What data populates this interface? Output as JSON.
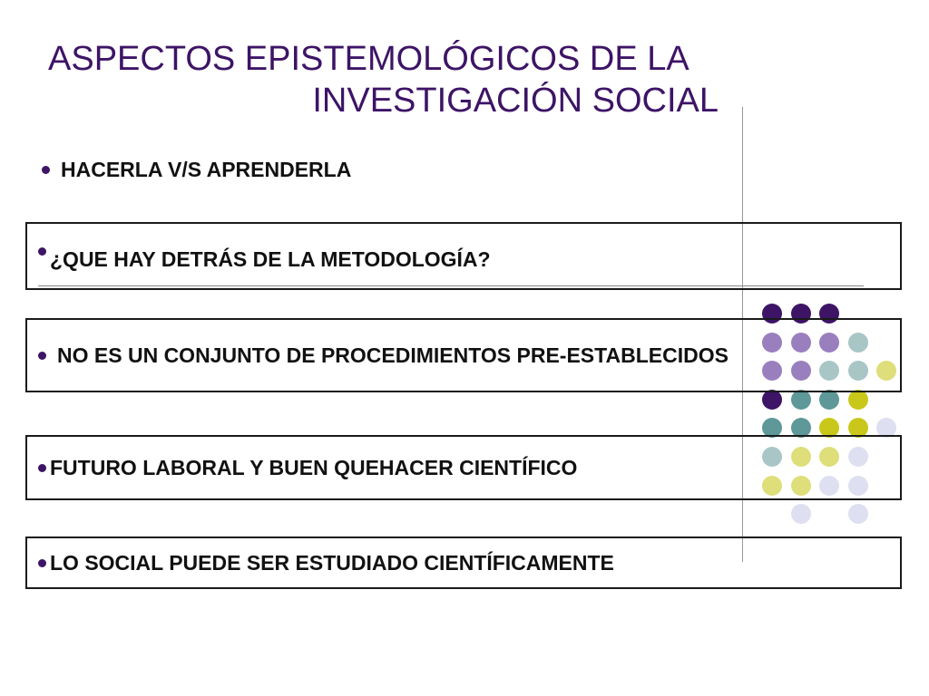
{
  "title": {
    "line1": "ASPECTOS EPISTEMOLÓGICOS DE LA",
    "line2": "INVESTIGACIÓN SOCIAL"
  },
  "intro": "HACERLA V/S APRENDERLA",
  "boxes": [
    "¿QUE HAY DETRÁS DE LA METODOLOGÍA?",
    "NO ES UN CONJUNTO DE PROCEDIMIENTOS PRE-ESTABLECIDOS",
    "FUTURO LABORAL Y BUEN QUEHACER CIENTÍFICO",
    "LO SOCIAL PUEDE SER ESTUDIADO CIENTÍFICAMENTE"
  ],
  "colors": {
    "title": "#3d1466",
    "dark_purple": "#3d1466",
    "lavender": "#9a7fbf",
    "light_teal": "#a9c6c6",
    "teal": "#5e9898",
    "olive": "#c9c81a",
    "light_olive": "#dede7a",
    "pale_lavender": "#dedff0"
  },
  "dot_grid": [
    [
      "dark_purple",
      "dark_purple",
      "dark_purple",
      "",
      ""
    ],
    [
      "lavender",
      "lavender",
      "lavender",
      "light_teal",
      ""
    ],
    [
      "lavender",
      "lavender",
      "light_teal",
      "light_teal",
      "light_olive"
    ],
    [
      "dark_purple",
      "teal",
      "teal",
      "olive",
      ""
    ],
    [
      "teal",
      "teal",
      "olive",
      "olive",
      "pale_lavender"
    ],
    [
      "light_teal",
      "light_olive",
      "light_olive",
      "pale_lavender",
      ""
    ],
    [
      "light_olive",
      "light_olive",
      "pale_lavender",
      "pale_lavender",
      ""
    ],
    [
      "",
      "pale_lavender",
      "",
      "pale_lavender",
      ""
    ]
  ]
}
